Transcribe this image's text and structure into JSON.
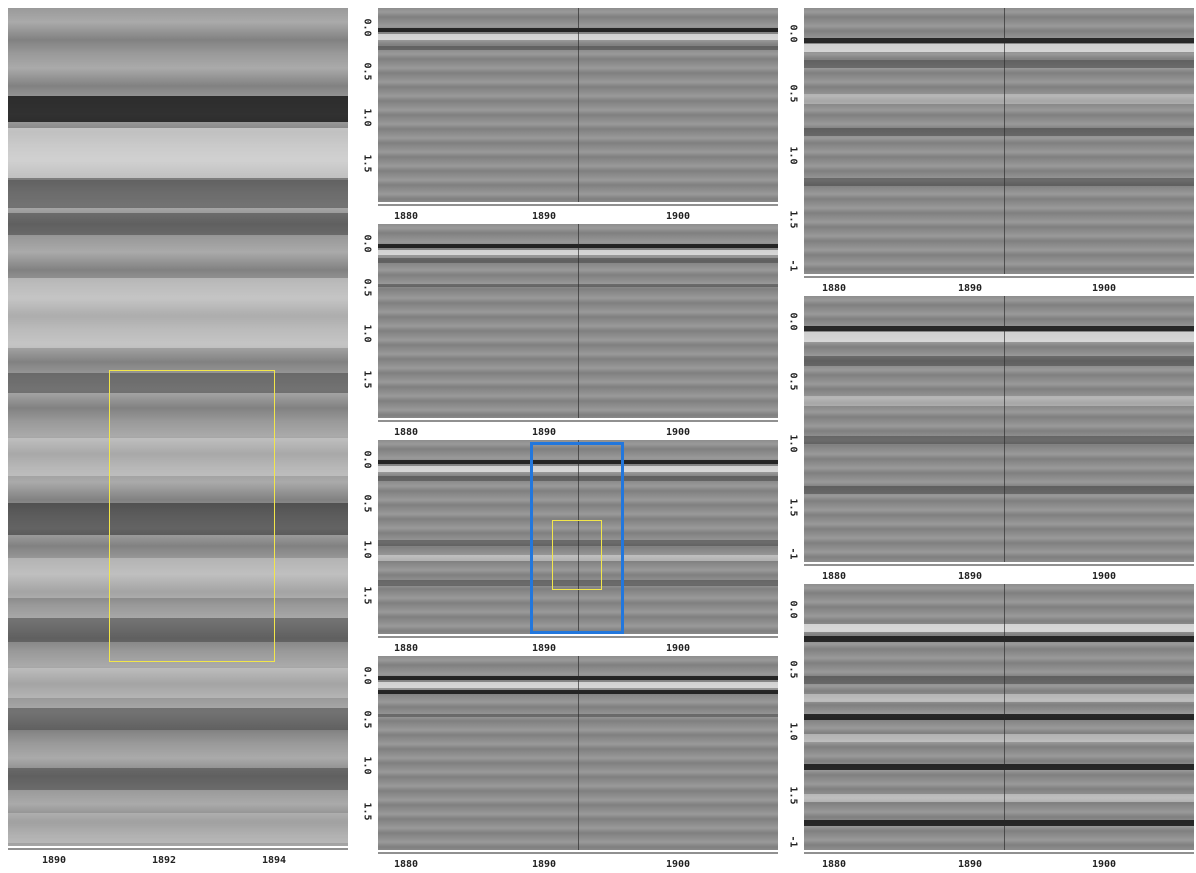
{
  "left_panel": {
    "xticks": [
      "1890",
      "1892",
      "1894"
    ]
  },
  "middle_panels": {
    "yticks": [
      "0.0",
      "0.5",
      "1.0",
      "1.5"
    ],
    "xticks": [
      "1880",
      "1890",
      "1900"
    ]
  },
  "right_panels": {
    "yticks": [
      "0.0",
      "0.5",
      "1.0",
      "1.5",
      "-1"
    ],
    "xticks": [
      "1880",
      "1890",
      "1900"
    ]
  },
  "colors": {
    "selection_yellow": "#f2e64a",
    "selection_blue": "#2277dd"
  }
}
